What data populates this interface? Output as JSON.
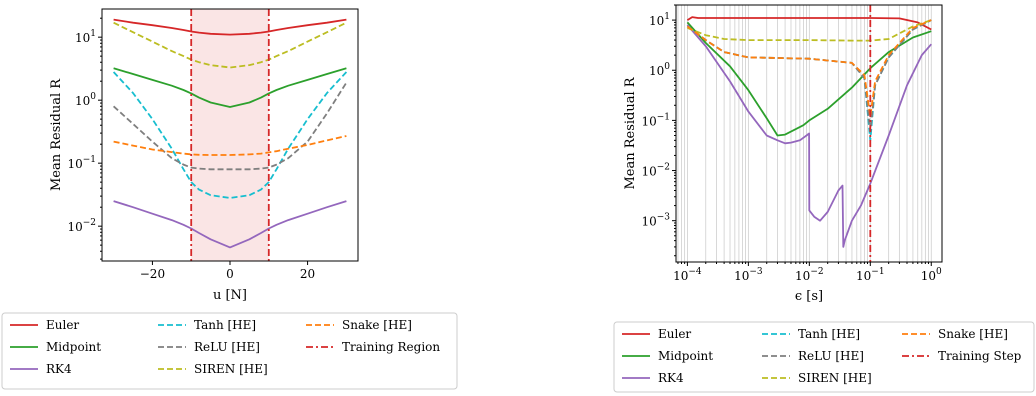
{
  "chart_data": [
    {
      "type": "line",
      "xlabel": "u [N]",
      "ylabel": "Mean Residual R",
      "xscale": "linear",
      "yscale": "log",
      "xlim": [
        -33,
        33
      ],
      "ylim": [
        0.0028,
        28
      ],
      "xticks": [
        -20,
        0,
        20
      ],
      "xtick_labels": [
        "−20",
        "0",
        "20"
      ],
      "yticks": [
        0.01,
        0.1,
        1,
        10
      ],
      "ytick_labels": [
        "10",
        "10",
        "10",
        "10"
      ],
      "ytick_exponents": [
        "−2",
        "−1",
        "0",
        "1"
      ],
      "shaded_region": [
        -10,
        10
      ],
      "vlines": [
        -10,
        10
      ],
      "x": [
        -30,
        -25,
        -20,
        -15,
        -12,
        -10,
        -8,
        -5,
        0,
        5,
        8,
        10,
        12,
        15,
        20,
        25,
        30
      ],
      "series": [
        {
          "name": "Euler",
          "color": "#d62728",
          "dash": "solid",
          "values": [
            19,
            17,
            15.5,
            14,
            13,
            12.3,
            11.8,
            11.3,
            11,
            11.3,
            11.8,
            12.3,
            13,
            14,
            15.5,
            17,
            19
          ]
        },
        {
          "name": "Midpoint",
          "color": "#2ca02c",
          "dash": "solid",
          "values": [
            3.2,
            2.6,
            2.1,
            1.7,
            1.45,
            1.28,
            1.1,
            0.92,
            0.78,
            0.92,
            1.1,
            1.28,
            1.45,
            1.7,
            2.1,
            2.6,
            3.2
          ]
        },
        {
          "name": "RK4",
          "color": "#9467bd",
          "dash": "solid",
          "values": [
            0.025,
            0.02,
            0.0158,
            0.0125,
            0.0105,
            0.0092,
            0.0078,
            0.0062,
            0.0046,
            0.0062,
            0.0078,
            0.0092,
            0.0105,
            0.0125,
            0.0158,
            0.02,
            0.025
          ]
        },
        {
          "name": "Tanh [HE]",
          "color": "#17becf",
          "dash": "dashed",
          "values": [
            2.8,
            1.3,
            0.5,
            0.17,
            0.08,
            0.05,
            0.038,
            0.031,
            0.028,
            0.031,
            0.038,
            0.05,
            0.08,
            0.17,
            0.5,
            1.3,
            2.8
          ]
        },
        {
          "name": "ReLU [HE]",
          "color": "#7f7f7f",
          "dash": "dashed",
          "values": [
            0.8,
            0.42,
            0.22,
            0.12,
            0.095,
            0.085,
            0.082,
            0.08,
            0.08,
            0.08,
            0.082,
            0.085,
            0.095,
            0.12,
            0.22,
            0.62,
            1.9
          ]
        },
        {
          "name": "SIREN [HE]",
          "color": "#bcbd22",
          "dash": "dashed",
          "values": [
            17,
            12,
            8.5,
            6,
            5,
            4.4,
            4,
            3.6,
            3.3,
            3.6,
            4,
            4.4,
            5,
            6,
            8.5,
            12,
            17
          ]
        },
        {
          "name": "Snake [HE]",
          "color": "#ff7f0e",
          "dash": "dashed",
          "values": [
            0.22,
            0.19,
            0.165,
            0.15,
            0.142,
            0.138,
            0.136,
            0.135,
            0.135,
            0.138,
            0.142,
            0.148,
            0.155,
            0.17,
            0.195,
            0.23,
            0.27
          ]
        }
      ],
      "legend": {
        "placement": "below",
        "entries": [
          "Euler",
          "Tanh [HE]",
          "Snake [HE]",
          "Midpoint",
          "ReLU [HE]",
          "Training Region",
          "RK4",
          "SIREN [HE]"
        ]
      }
    },
    {
      "type": "line",
      "xlabel": "ϵ [s]",
      "ylabel": "Mean Residual R",
      "xscale": "log",
      "yscale": "log",
      "xlim": [
        6.5e-05,
        1.5
      ],
      "ylim": [
        0.00015,
        20
      ],
      "xticks": [
        0.0001,
        0.001,
        0.01,
        0.1,
        1
      ],
      "xtick_labels": [
        "10",
        "10",
        "10",
        "10",
        "10"
      ],
      "xtick_exponents": [
        "−4",
        "−3",
        "−2",
        "−1",
        "0"
      ],
      "yticks": [
        0.001,
        0.01,
        0.1,
        1,
        10
      ],
      "ytick_labels": [
        "10",
        "10",
        "10",
        "10",
        "10"
      ],
      "ytick_exponents": [
        "−3",
        "−2",
        "−1",
        "0",
        "1"
      ],
      "grid": "x-minor",
      "vlines": [
        0.1
      ],
      "series": [
        {
          "name": "Euler",
          "color": "#d62728",
          "dash": "solid",
          "x": [
            0.0001,
            0.00012,
            0.00015,
            0.01,
            0.1,
            0.3,
            0.6,
            1
          ],
          "values": [
            10,
            11.5,
            11,
            11,
            11,
            10.8,
            9,
            6.5
          ]
        },
        {
          "name": "Midpoint",
          "color": "#2ca02c",
          "dash": "solid",
          "x": [
            0.0001,
            0.0002,
            0.0005,
            0.001,
            0.002,
            0.003,
            0.004,
            0.008,
            0.01,
            0.02,
            0.05,
            0.1,
            0.2,
            0.5,
            1
          ],
          "values": [
            9,
            3.5,
            1.2,
            0.4,
            0.11,
            0.05,
            0.052,
            0.08,
            0.1,
            0.17,
            0.45,
            1.1,
            2.3,
            4.5,
            6
          ]
        },
        {
          "name": "RK4",
          "color": "#9467bd",
          "dash": "solid",
          "x": [
            0.0001,
            0.0002,
            0.0005,
            0.001,
            0.002,
            0.003,
            0.004,
            0.005,
            0.007,
            0.009,
            0.0099,
            0.01,
            0.012,
            0.015,
            0.02,
            0.03,
            0.035,
            0.036,
            0.038,
            0.05,
            0.07,
            0.1,
            0.2,
            0.4,
            0.7,
            1
          ],
          "values": [
            8,
            3,
            0.6,
            0.15,
            0.05,
            0.04,
            0.035,
            0.036,
            0.04,
            0.05,
            0.055,
            0.0016,
            0.0012,
            0.001,
            0.0015,
            0.004,
            0.005,
            0.0003,
            0.0004,
            0.001,
            0.002,
            0.0055,
            0.05,
            0.5,
            2,
            3.3
          ]
        },
        {
          "name": "Tanh [HE]",
          "color": "#17becf",
          "dash": "dashed",
          "x": [
            0.0001,
            0.0002,
            0.0004,
            0.001,
            0.01,
            0.05,
            0.08,
            0.1,
            0.12,
            0.2,
            0.5,
            1
          ],
          "values": [
            7.5,
            4,
            2.3,
            1.8,
            1.7,
            1.4,
            0.7,
            0.04,
            0.5,
            1.8,
            6.5,
            10
          ]
        },
        {
          "name": "ReLU [HE]",
          "color": "#7f7f7f",
          "dash": "dashed",
          "x": [
            0.0001,
            0.0002,
            0.0004,
            0.001,
            0.01,
            0.05,
            0.08,
            0.1,
            0.12,
            0.2,
            0.5,
            1
          ],
          "values": [
            7.5,
            4,
            2.3,
            1.8,
            1.7,
            1.4,
            0.7,
            0.06,
            0.5,
            1.8,
            6.5,
            10
          ]
        },
        {
          "name": "SIREN [HE]",
          "color": "#bcbd22",
          "dash": "dashed",
          "x": [
            0.0001,
            0.0002,
            0.0004,
            0.001,
            0.01,
            0.05,
            0.1,
            0.2,
            0.5,
            1
          ],
          "values": [
            7,
            5,
            4.2,
            4,
            4,
            3.9,
            3.9,
            4.2,
            7.5,
            10
          ]
        },
        {
          "name": "Snake [HE]",
          "color": "#ff7f0e",
          "dash": "dashed",
          "x": [
            0.0001,
            0.0002,
            0.0004,
            0.001,
            0.01,
            0.05,
            0.08,
            0.1,
            0.12,
            0.2,
            0.5,
            1
          ],
          "values": [
            7.5,
            4,
            2.3,
            1.8,
            1.7,
            1.4,
            0.8,
            0.12,
            0.6,
            2,
            7,
            10
          ]
        }
      ],
      "legend": {
        "placement": "below",
        "entries": [
          "Euler",
          "Tanh [HE]",
          "Snake [HE]",
          "Midpoint",
          "ReLU [HE]",
          "Training Step",
          "RK4",
          "SIREN [HE]"
        ]
      }
    }
  ]
}
